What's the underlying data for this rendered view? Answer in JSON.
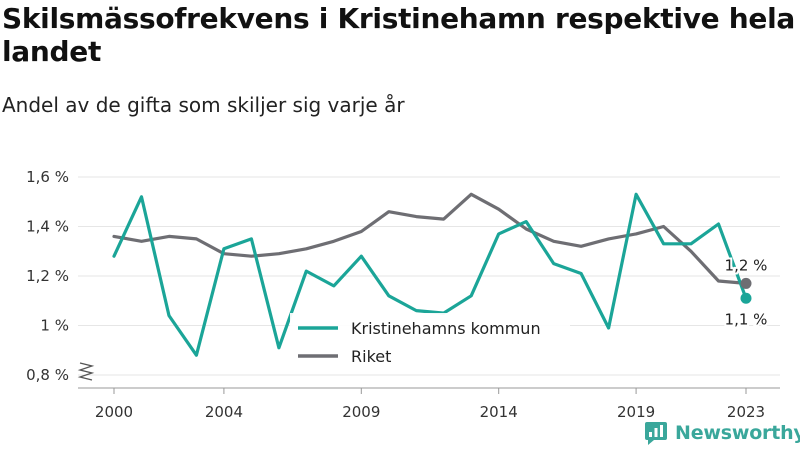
{
  "title": "Skilsmässofrekvens i Kristinehamn respektive hela landet",
  "subtitle": "Andel av de gifta som skiljer sig varje år",
  "brand": {
    "name": "Newsworthy",
    "icon": "newsworthy-logo-icon"
  },
  "chart_data": {
    "type": "line",
    "x": [
      2000,
      2001,
      2002,
      2003,
      2004,
      2005,
      2006,
      2007,
      2008,
      2009,
      2010,
      2011,
      2012,
      2013,
      2014,
      2015,
      2016,
      2017,
      2018,
      2019,
      2020,
      2021,
      2022,
      2023
    ],
    "series": [
      {
        "name": "Kristinehamns kommun",
        "color": "#1ba598",
        "values": [
          1.28,
          1.52,
          1.04,
          0.88,
          1.31,
          1.35,
          0.91,
          1.22,
          1.16,
          1.28,
          1.12,
          1.06,
          1.05,
          1.12,
          1.37,
          1.42,
          1.25,
          1.21,
          0.99,
          1.53,
          1.33,
          1.33,
          1.41,
          1.11
        ],
        "end_label": "1,1 %"
      },
      {
        "name": "Riket",
        "color": "#6e6e73",
        "values": [
          1.36,
          1.34,
          1.36,
          1.35,
          1.29,
          1.28,
          1.29,
          1.31,
          1.34,
          1.38,
          1.46,
          1.44,
          1.43,
          1.53,
          1.47,
          1.39,
          1.34,
          1.32,
          1.35,
          1.37,
          1.4,
          1.3,
          1.18,
          1.17
        ],
        "end_label": "1,2 %"
      }
    ],
    "x_ticks": [
      2000,
      2004,
      2009,
      2014,
      2019,
      2023
    ],
    "x_tick_labels": [
      "2000",
      "2004",
      "2009",
      "2014",
      "2019",
      "2023"
    ],
    "y_ticks": [
      0.8,
      1.0,
      1.2,
      1.4,
      1.6
    ],
    "y_tick_labels": [
      "0,8 %",
      "1 %",
      "1,2 %",
      "1,4 %",
      "1,6 %"
    ],
    "ylim": [
      0.8,
      1.6
    ],
    "xlim": [
      2000,
      2023
    ],
    "y_axis_break": true,
    "grid": "horizontal",
    "legend": "bottom-center"
  }
}
